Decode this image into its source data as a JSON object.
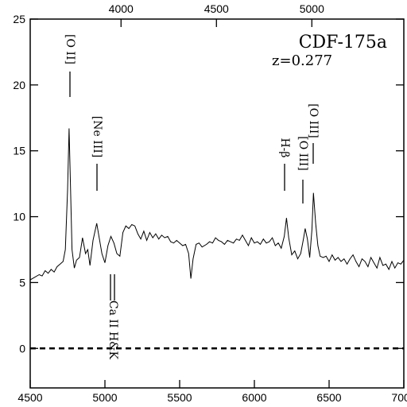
{
  "chart_data": {
    "type": "line",
    "title": "CDF-175a",
    "subtitle": "z=0.277",
    "xlim": [
      4500,
      7000
    ],
    "xticks": [
      4500,
      5000,
      5500,
      6000,
      6500,
      7000
    ],
    "x2lim": [
      3524,
      5482
    ],
    "x2ticks": [
      4000,
      4500,
      5000
    ],
    "ylim": [
      -3,
      25
    ],
    "yticks": [
      0,
      5,
      10,
      15,
      20,
      25
    ],
    "hline": 0,
    "color": "#000000",
    "annotations": [
      "[O II]",
      "[Ne III]",
      "Ca II H&K",
      "H-β",
      "[O III]",
      "[O III]"
    ],
    "x": [
      4500,
      4530,
      4560,
      4580,
      4600,
      4620,
      4640,
      4660,
      4680,
      4700,
      4720,
      4735,
      4750,
      4760,
      4770,
      4780,
      4795,
      4810,
      4830,
      4850,
      4870,
      4885,
      4900,
      4920,
      4945,
      4960,
      4980,
      5000,
      5020,
      5040,
      5060,
      5080,
      5100,
      5120,
      5140,
      5160,
      5180,
      5200,
      5220,
      5240,
      5260,
      5280,
      5300,
      5320,
      5340,
      5360,
      5380,
      5400,
      5420,
      5440,
      5460,
      5480,
      5500,
      5520,
      5540,
      5560,
      5575,
      5590,
      5610,
      5630,
      5650,
      5680,
      5700,
      5720,
      5740,
      5760,
      5780,
      5800,
      5820,
      5840,
      5860,
      5880,
      5900,
      5920,
      5940,
      5960,
      5980,
      6000,
      6020,
      6040,
      6060,
      6080,
      6100,
      6120,
      6140,
      6160,
      6180,
      6200,
      6215,
      6230,
      6250,
      6270,
      6290,
      6310,
      6330,
      6340,
      6355,
      6370,
      6385,
      6395,
      6410,
      6425,
      6440,
      6460,
      6480,
      6500,
      6520,
      6540,
      6560,
      6580,
      6600,
      6620,
      6640,
      6660,
      6680,
      6700,
      6720,
      6740,
      6760,
      6780,
      6800,
      6820,
      6840,
      6860,
      6880,
      6900,
      6920,
      6940,
      6960,
      6980,
      7000
    ],
    "values": [
      5.2,
      5.4,
      5.6,
      5.5,
      5.9,
      5.7,
      6.0,
      5.8,
      6.2,
      6.4,
      6.6,
      7.5,
      12,
      16.7,
      12,
      7.5,
      6.1,
      6.7,
      6.9,
      8.4,
      7.2,
      7.5,
      6.3,
      8.2,
      9.5,
      8.5,
      7.2,
      6.5,
      7.8,
      8.5,
      8.0,
      7.2,
      7.0,
      8.8,
      9.3,
      9.1,
      9.4,
      9.3,
      8.7,
      8.3,
      8.9,
      8.2,
      8.8,
      8.4,
      8.7,
      8.3,
      8.6,
      8.4,
      8.5,
      8.1,
      8.0,
      8.2,
      8.0,
      7.8,
      7.9,
      7.2,
      5.3,
      6.8,
      7.9,
      8.0,
      7.7,
      7.9,
      8.1,
      8.0,
      8.4,
      8.2,
      8.1,
      7.9,
      8.2,
      8.1,
      8.0,
      8.3,
      8.2,
      8.6,
      8.2,
      7.8,
      8.4,
      8.0,
      8.1,
      7.9,
      8.3,
      8.0,
      8.1,
      8.4,
      7.8,
      8.0,
      7.6,
      8.5,
      9.9,
      8.4,
      7.1,
      7.4,
      6.8,
      7.2,
      8.4,
      9.1,
      8.3,
      6.9,
      9.0,
      11.8,
      9.5,
      7.8,
      7.0,
      6.9,
      7.0,
      6.6,
      7.1,
      6.7,
      6.9,
      6.6,
      6.8,
      6.4,
      6.8,
      7.1,
      6.6,
      6.2,
      6.8,
      6.6,
      6.2,
      6.9,
      6.5,
      6.1,
      6.9,
      6.3,
      6.4,
      6.0,
      6.6,
      6.1,
      6.5,
      6.4,
      6.7
    ]
  }
}
